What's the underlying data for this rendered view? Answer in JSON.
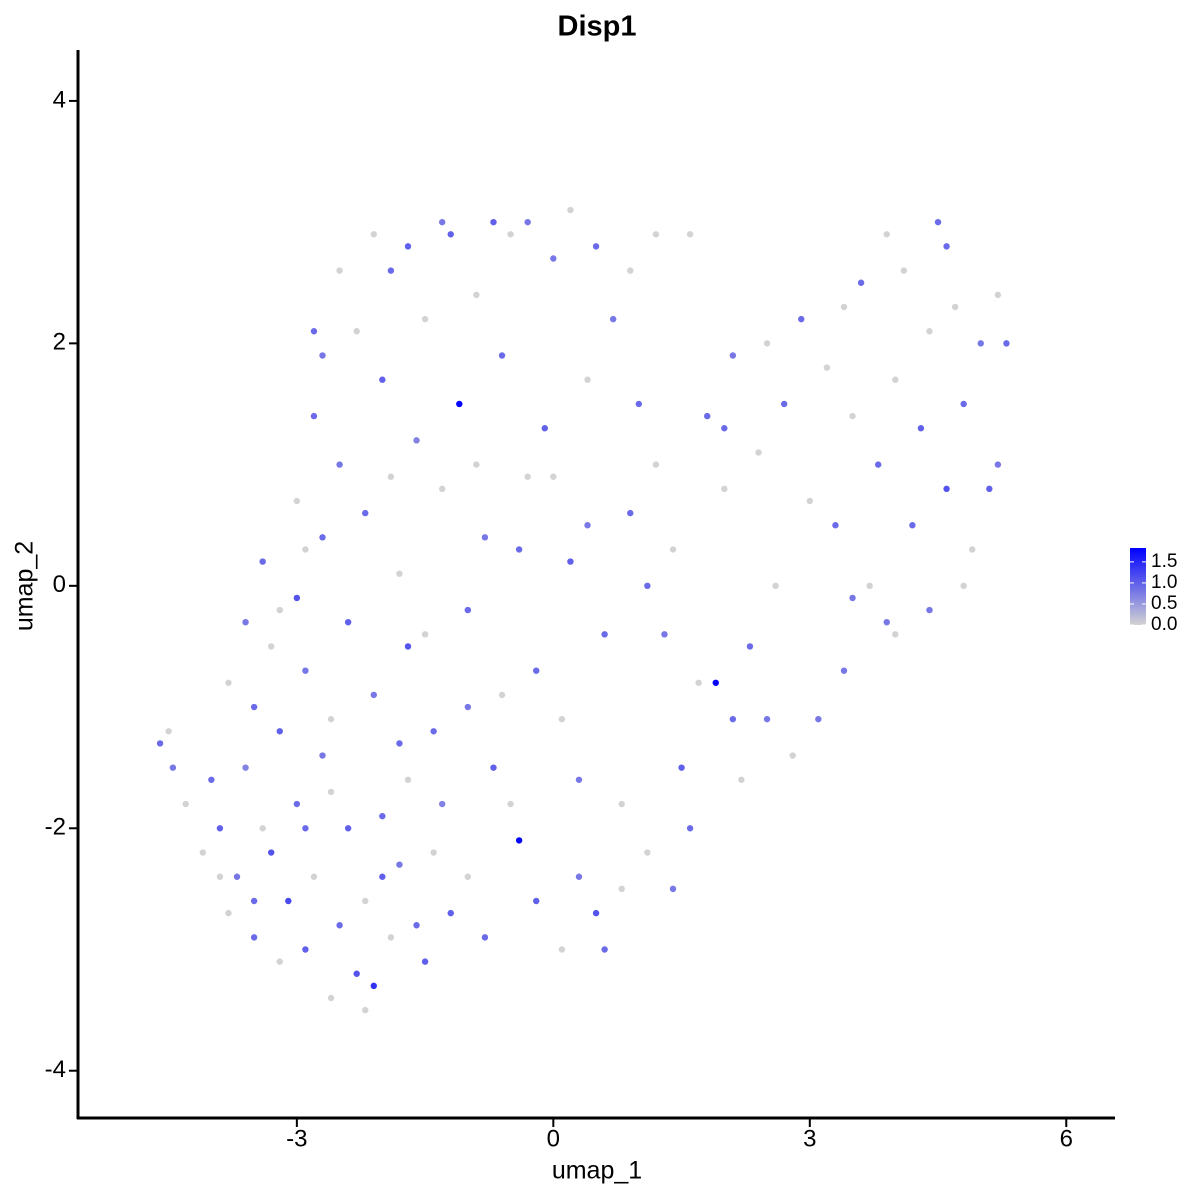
{
  "chart_data": {
    "type": "scatter",
    "title": "Disp1",
    "xlabel": "umap_1",
    "ylabel": "umap_2",
    "xlim": [
      -5.56,
      6.57
    ],
    "ylim": [
      -4.39,
      4.42
    ],
    "xticks": [
      -3,
      0,
      3,
      6
    ],
    "yticks": [
      -4,
      -2,
      0,
      2,
      4
    ],
    "color_low": "#d3d3d3",
    "color_high": "#0000ff",
    "clim": [
      0,
      1.83
    ],
    "color_ticks": [
      {
        "value": 0,
        "label": "0.0"
      },
      {
        "value": 0.5,
        "label": "0.5"
      },
      {
        "value": 1,
        "label": "1.0"
      },
      {
        "value": 1.5,
        "label": "1.5"
      }
    ],
    "x": [
      -4.6,
      -4.5,
      -4.45,
      -4.3,
      -4.1,
      -4.0,
      -3.9,
      -3.8,
      -3.7,
      -3.6,
      -3.5,
      -3.4,
      -3.3,
      -3.2,
      -3.1,
      -3.0,
      -2.9,
      -2.8,
      -2.7,
      -2.6,
      -2.5,
      -2.4,
      -2.3,
      -2.2,
      -2.1,
      -2.0,
      -1.9,
      -1.8,
      -1.7,
      -1.6,
      -1.5,
      -1.4,
      -1.3,
      -1.2,
      -3.8,
      -3.6,
      -3.5,
      -3.4,
      -3.3,
      -3.2,
      -3.0,
      -3.0,
      -2.9,
      -2.8,
      -2.7,
      -2.6,
      -2.5,
      -2.4,
      -2.3,
      -2.2,
      -2.1,
      -2.0,
      -1.9,
      -1.8,
      -1.7,
      -1.6,
      -1.5,
      -1.4,
      -1.3,
      -1.2,
      -1.1,
      -1.0,
      -0.9,
      -0.8,
      -0.7,
      -0.6,
      -0.5,
      -0.4,
      -0.3,
      -0.2,
      -0.1,
      0.0,
      0.1,
      0.2,
      0.3,
      0.4,
      0.5,
      0.6,
      0.7,
      0.8,
      0.9,
      -3.9,
      -3.5,
      -2.9,
      -2.6,
      -2.2,
      -2.0,
      -1.8,
      -1.0,
      -0.8,
      -0.5,
      -0.2,
      0.1,
      0.3,
      0.6,
      0.8,
      -1.5,
      -1.0,
      -0.6,
      -2.8,
      -2.5,
      -2.1,
      -1.7,
      -1.3,
      -0.7,
      -0.3,
      0.2,
      0.5,
      0.9,
      -2.7,
      -2.9,
      -3.2,
      -1.9,
      -0.9,
      -0.4,
      0.0,
      0.4,
      1.0,
      1.2,
      1.3,
      1.4,
      1.5,
      1.6,
      1.7,
      1.8,
      1.9,
      2.0,
      2.1,
      2.2,
      2.3,
      2.4,
      2.5,
      2.6,
      2.7,
      2.8,
      2.9,
      3.0,
      3.1,
      3.2,
      3.3,
      3.4,
      3.5,
      3.6,
      3.7,
      3.8,
      3.9,
      4.0,
      4.1,
      4.2,
      4.3,
      4.4,
      4.5,
      4.6,
      4.7,
      4.8,
      4.9,
      5.0,
      5.1,
      5.2,
      5.3,
      5.2,
      4.8,
      4.4,
      3.9,
      4.6,
      3.4,
      2.5,
      2.0,
      1.1,
      1.2,
      1.6,
      1.4,
      1.1,
      2.1,
      3.5,
      4.0
    ],
    "y": [
      -1.3,
      -1.2,
      -1.5,
      -1.8,
      -2.2,
      -1.6,
      -2.0,
      -2.7,
      -2.4,
      -1.5,
      -2.9,
      -2.0,
      -2.2,
      -3.1,
      -2.6,
      -1.8,
      -3.0,
      -2.4,
      -1.4,
      -3.4,
      -2.8,
      -2.0,
      -3.2,
      -2.6,
      -3.3,
      -1.9,
      -2.9,
      -2.3,
      -1.6,
      -2.8,
      -3.1,
      -2.2,
      -1.8,
      -2.7,
      -0.8,
      -0.3,
      -1.0,
      0.2,
      -0.5,
      -1.2,
      0.7,
      -0.1,
      -0.7,
      1.4,
      0.4,
      -1.1,
      1.0,
      -0.3,
      2.1,
      0.6,
      -0.9,
      1.7,
      2.6,
      0.1,
      -0.5,
      1.2,
      2.2,
      -1.2,
      0.8,
      2.9,
      1.5,
      -0.2,
      2.4,
      0.4,
      -1.5,
      1.9,
      2.9,
      -2.1,
      0.9,
      -0.7,
      1.3,
      2.7,
      -1.1,
      0.2,
      -2.4,
      1.7,
      -2.7,
      -0.4,
      2.2,
      -1.8,
      0.6,
      -2.4,
      -2.6,
      -2.0,
      -1.7,
      -3.5,
      -2.4,
      -1.3,
      -2.4,
      -2.9,
      -1.8,
      -2.6,
      -3.0,
      -1.6,
      -3.0,
      -2.5,
      -0.4,
      -1.0,
      -0.9,
      2.1,
      2.6,
      2.9,
      2.8,
      3.0,
      3.0,
      3.0,
      3.1,
      2.8,
      2.6,
      1.9,
      0.3,
      -0.2,
      0.9,
      1.0,
      0.3,
      0.9,
      0.5,
      1.5,
      1.0,
      -0.4,
      0.3,
      -1.5,
      -2.0,
      -0.8,
      1.4,
      -0.8,
      0.8,
      1.9,
      -1.6,
      -0.5,
      1.1,
      -1.1,
      0.0,
      1.5,
      -1.4,
      2.2,
      0.7,
      -1.1,
      1.8,
      0.5,
      -0.7,
      1.4,
      2.5,
      0.0,
      1.0,
      -0.3,
      1.7,
      2.6,
      0.5,
      1.3,
      2.1,
      3.0,
      0.8,
      2.3,
      1.5,
      0.3,
      2.0,
      0.8,
      2.4,
      2.0,
      1.0,
      0.0,
      -0.2,
      2.9,
      2.8,
      2.3,
      2.0,
      1.3,
      0.0,
      2.9,
      2.9,
      -2.5,
      -2.2,
      -1.1,
      -0.1,
      -0.4
    ],
    "expression": [
      0.9,
      0,
      0.8,
      0,
      0,
      0.9,
      1.0,
      0,
      0.8,
      0.7,
      0.9,
      0,
      1.1,
      0,
      1.2,
      0.9,
      1.0,
      0,
      0.8,
      0,
      0.9,
      1.0,
      1.1,
      0,
      1.4,
      0.9,
      0,
      0.8,
      0,
      0.9,
      1.0,
      0,
      0.7,
      1.0,
      0,
      0.8,
      0.9,
      0.9,
      0,
      1.0,
      0,
      1.1,
      0.8,
      0.9,
      0.9,
      0,
      0.8,
      1.0,
      0,
      0.9,
      0.8,
      1.0,
      0.9,
      0,
      1.1,
      0.7,
      0,
      0.9,
      0,
      1.0,
      1.8,
      0.9,
      0,
      0.8,
      1.0,
      0.9,
      0,
      1.8,
      0,
      0.9,
      1.0,
      0.8,
      0,
      1.0,
      0.8,
      0,
      1.1,
      0.9,
      0.8,
      0,
      0.9,
      0,
      0.9,
      0.9,
      0,
      0,
      1.0,
      0.9,
      0,
      0.9,
      0,
      1.0,
      0,
      0.8,
      0.9,
      0,
      0,
      0.8,
      0,
      0.9,
      0,
      0,
      1.0,
      0.8,
      1.0,
      0.8,
      0,
      0.9,
      0,
      0.8,
      0,
      0,
      0,
      0,
      0.9,
      0,
      0.8,
      0.9,
      0,
      0.8,
      0,
      1.0,
      0.9,
      0,
      0.9,
      1.8,
      0,
      0.8,
      0,
      0.9,
      0,
      0.8,
      0,
      0.9,
      0,
      0.9,
      0,
      0.8,
      0,
      0.9,
      0.8,
      0,
      0.9,
      0,
      0.9,
      0.8,
      0,
      0,
      0.9,
      1.0,
      0,
      0.9,
      1.1,
      0,
      0.9,
      0,
      0.8,
      1.0,
      0,
      0.9,
      0.8,
      0,
      0.8,
      0,
      0.9,
      0,
      0,
      0.9,
      0.9,
      0,
      0,
      0.8,
      0,
      0.9,
      0.8,
      0
    ]
  }
}
